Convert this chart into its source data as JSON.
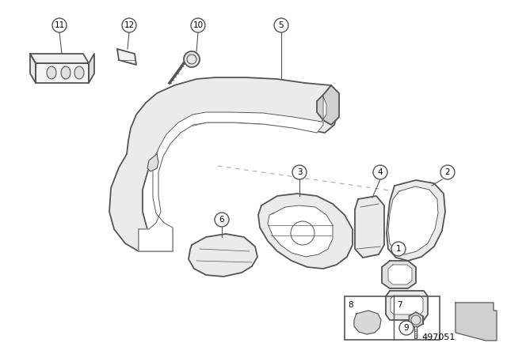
{
  "background_color": "#ffffff",
  "line_color": "#555555",
  "part_number": "497051",
  "figsize": [
    6.4,
    4.48
  ],
  "dpi": 100
}
